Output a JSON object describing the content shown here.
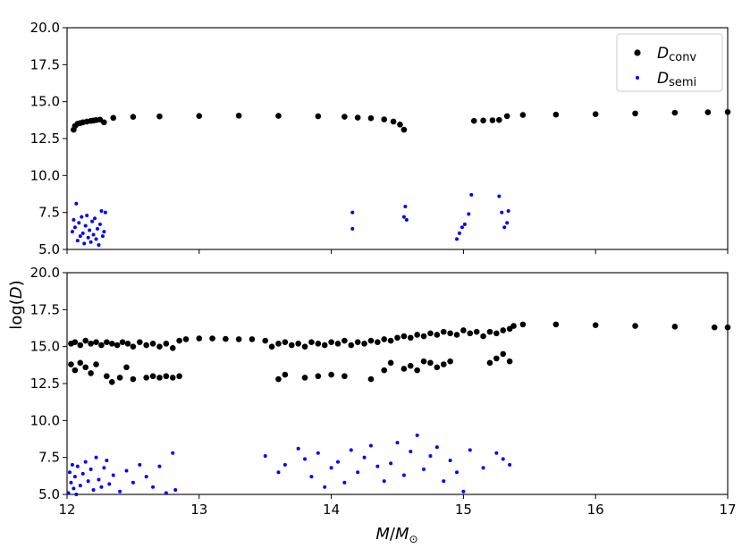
{
  "colors": {
    "conv": "#000000",
    "semi": "#0000ff"
  },
  "figure": {
    "ylabel": "log(",
    "ylabel_var": "D",
    "ylabel_close": ")",
    "xlabel_var": "M",
    "xlabel_sep": "/",
    "xlabel_sub": "⊙"
  },
  "legend": {
    "placement": "top-right",
    "entries": [
      {
        "series": "conv",
        "name": "D",
        "sub": "conv",
        "marker": "large-dot"
      },
      {
        "series": "semi",
        "name": "D",
        "sub": "semi",
        "marker": "small-dot"
      }
    ]
  },
  "chart_data": [
    {
      "type": "scatter",
      "panel": "top",
      "xlim": [
        12,
        17
      ],
      "ylim": [
        5.0,
        20.0
      ],
      "yticks": [
        "5.0",
        "7.5",
        "10.0",
        "12.5",
        "15.0",
        "17.5",
        "20.0"
      ],
      "xticks_labeled": false,
      "grid": false,
      "legend": true,
      "series": [
        {
          "key": "conv",
          "name": "Dconv",
          "points": [
            [
              12.05,
              13.1
            ],
            [
              12.06,
              13.35
            ],
            [
              12.08,
              13.5
            ],
            [
              12.1,
              13.55
            ],
            [
              12.12,
              13.6
            ],
            [
              12.15,
              13.65
            ],
            [
              12.18,
              13.7
            ],
            [
              12.2,
              13.72
            ],
            [
              12.22,
              13.75
            ],
            [
              12.25,
              13.78
            ],
            [
              12.28,
              13.6
            ],
            [
              12.35,
              13.9
            ],
            [
              12.5,
              13.97
            ],
            [
              12.7,
              14.0
            ],
            [
              13.0,
              14.03
            ],
            [
              13.3,
              14.05
            ],
            [
              13.6,
              14.04
            ],
            [
              13.9,
              14.01
            ],
            [
              14.1,
              13.98
            ],
            [
              14.2,
              13.92
            ],
            [
              14.3,
              13.88
            ],
            [
              14.4,
              13.8
            ],
            [
              14.47,
              13.65
            ],
            [
              14.52,
              13.45
            ],
            [
              14.55,
              13.1
            ],
            [
              15.08,
              13.7
            ],
            [
              15.15,
              13.72
            ],
            [
              15.22,
              13.74
            ],
            [
              15.27,
              13.76
            ],
            [
              15.33,
              14.02
            ],
            [
              15.45,
              14.1
            ],
            [
              15.7,
              14.12
            ],
            [
              16.0,
              14.15
            ],
            [
              16.3,
              14.2
            ],
            [
              16.6,
              14.25
            ],
            [
              16.85,
              14.28
            ],
            [
              17.0,
              14.3
            ]
          ]
        },
        {
          "key": "semi",
          "name": "Dsemi",
          "points": [
            [
              12.04,
              6.2
            ],
            [
              12.05,
              7.0
            ],
            [
              12.06,
              6.5
            ],
            [
              12.07,
              8.1
            ],
            [
              12.08,
              5.6
            ],
            [
              12.09,
              6.8
            ],
            [
              12.1,
              5.9
            ],
            [
              12.11,
              7.2
            ],
            [
              12.12,
              6.1
            ],
            [
              12.13,
              5.4
            ],
            [
              12.14,
              6.6
            ],
            [
              12.15,
              7.3
            ],
            [
              12.16,
              5.8
            ],
            [
              12.17,
              6.3
            ],
            [
              12.18,
              5.5
            ],
            [
              12.19,
              6.9
            ],
            [
              12.2,
              6.0
            ],
            [
              12.21,
              7.1
            ],
            [
              12.22,
              5.7
            ],
            [
              12.23,
              6.4
            ],
            [
              12.24,
              5.3
            ],
            [
              12.25,
              6.7
            ],
            [
              12.26,
              7.6
            ],
            [
              12.27,
              5.9
            ],
            [
              12.28,
              6.2
            ],
            [
              12.29,
              7.5
            ],
            [
              14.16,
              6.4
            ],
            [
              14.16,
              7.5
            ],
            [
              14.55,
              7.2
            ],
            [
              14.56,
              7.9
            ],
            [
              14.57,
              7.0
            ],
            [
              14.95,
              5.7
            ],
            [
              14.97,
              6.1
            ],
            [
              14.99,
              6.5
            ],
            [
              15.01,
              6.7
            ],
            [
              15.04,
              7.4
            ],
            [
              15.06,
              8.7
            ],
            [
              15.27,
              8.6
            ],
            [
              15.29,
              7.5
            ],
            [
              15.31,
              6.5
            ],
            [
              15.33,
              6.8
            ],
            [
              15.34,
              7.6
            ]
          ]
        }
      ]
    },
    {
      "type": "scatter",
      "panel": "bottom",
      "xlim": [
        12,
        17
      ],
      "ylim": [
        5.0,
        20.0
      ],
      "xticks": [
        "12",
        "13",
        "14",
        "15",
        "16",
        "17"
      ],
      "yticks": [
        "5.0",
        "7.5",
        "10.0",
        "12.5",
        "15.0",
        "17.5",
        "20.0"
      ],
      "grid": false,
      "legend": false,
      "series": [
        {
          "key": "conv",
          "name": "Dconv",
          "points": [
            [
              12.03,
              15.2
            ],
            [
              12.06,
              15.3
            ],
            [
              12.1,
              15.1
            ],
            [
              12.14,
              15.4
            ],
            [
              12.18,
              15.2
            ],
            [
              12.22,
              15.3
            ],
            [
              12.26,
              15.1
            ],
            [
              12.3,
              15.3
            ],
            [
              12.34,
              15.2
            ],
            [
              12.38,
              15.1
            ],
            [
              12.42,
              15.3
            ],
            [
              12.46,
              15.2
            ],
            [
              12.5,
              15.0
            ],
            [
              12.55,
              15.3
            ],
            [
              12.6,
              15.1
            ],
            [
              12.65,
              15.2
            ],
            [
              12.7,
              15.0
            ],
            [
              12.75,
              15.2
            ],
            [
              12.8,
              14.9
            ],
            [
              12.85,
              15.4
            ],
            [
              12.9,
              15.5
            ],
            [
              13.0,
              15.55
            ],
            [
              13.1,
              15.55
            ],
            [
              13.2,
              15.52
            ],
            [
              13.3,
              15.5
            ],
            [
              13.4,
              15.5
            ],
            [
              13.5,
              15.4
            ],
            [
              13.55,
              15.0
            ],
            [
              13.6,
              15.2
            ],
            [
              13.65,
              15.3
            ],
            [
              13.7,
              15.1
            ],
            [
              13.75,
              15.2
            ],
            [
              13.8,
              15.0
            ],
            [
              13.85,
              15.3
            ],
            [
              13.9,
              15.2
            ],
            [
              13.95,
              15.1
            ],
            [
              14.0,
              15.3
            ],
            [
              14.05,
              15.2
            ],
            [
              14.1,
              15.4
            ],
            [
              14.15,
              15.1
            ],
            [
              14.2,
              15.3
            ],
            [
              14.25,
              15.2
            ],
            [
              14.3,
              15.4
            ],
            [
              14.35,
              15.3
            ],
            [
              14.4,
              15.5
            ],
            [
              14.45,
              15.4
            ],
            [
              14.5,
              15.6
            ],
            [
              14.55,
              15.7
            ],
            [
              14.6,
              15.6
            ],
            [
              14.65,
              15.8
            ],
            [
              14.7,
              15.7
            ],
            [
              14.75,
              15.9
            ],
            [
              14.8,
              15.8
            ],
            [
              14.85,
              16.0
            ],
            [
              14.9,
              15.9
            ],
            [
              14.95,
              15.8
            ],
            [
              15.0,
              16.1
            ],
            [
              15.05,
              15.9
            ],
            [
              15.1,
              16.0
            ],
            [
              15.15,
              15.7
            ],
            [
              15.2,
              16.0
            ],
            [
              15.25,
              15.9
            ],
            [
              15.3,
              16.1
            ],
            [
              15.35,
              16.2
            ],
            [
              15.38,
              16.4
            ],
            [
              15.45,
              16.5
            ],
            [
              15.7,
              16.5
            ],
            [
              16.0,
              16.45
            ],
            [
              16.3,
              16.4
            ],
            [
              16.6,
              16.35
            ],
            [
              16.9,
              16.3
            ],
            [
              17.0,
              16.3
            ],
            [
              12.03,
              13.8
            ],
            [
              12.06,
              13.4
            ],
            [
              12.1,
              13.9
            ],
            [
              12.14,
              13.6
            ],
            [
              12.18,
              13.2
            ],
            [
              12.22,
              13.8
            ],
            [
              12.3,
              13.0
            ],
            [
              12.34,
              12.6
            ],
            [
              12.4,
              12.9
            ],
            [
              12.45,
              13.6
            ],
            [
              12.5,
              12.8
            ],
            [
              12.6,
              12.9
            ],
            [
              12.65,
              13.0
            ],
            [
              12.7,
              12.9
            ],
            [
              12.75,
              13.0
            ],
            [
              12.8,
              12.9
            ],
            [
              12.85,
              13.0
            ],
            [
              13.6,
              12.8
            ],
            [
              13.65,
              13.1
            ],
            [
              13.8,
              12.9
            ],
            [
              13.9,
              13.0
            ],
            [
              14.0,
              13.1
            ],
            [
              14.1,
              13.0
            ],
            [
              14.3,
              12.8
            ],
            [
              14.4,
              13.4
            ],
            [
              14.45,
              13.9
            ],
            [
              14.55,
              13.5
            ],
            [
              14.6,
              13.7
            ],
            [
              14.65,
              13.4
            ],
            [
              14.7,
              14.0
            ],
            [
              14.75,
              13.9
            ],
            [
              14.8,
              13.6
            ],
            [
              14.85,
              13.8
            ],
            [
              14.9,
              14.0
            ],
            [
              15.2,
              13.9
            ],
            [
              15.25,
              14.2
            ],
            [
              15.3,
              14.5
            ],
            [
              15.35,
              14.0
            ]
          ]
        },
        {
          "key": "semi",
          "name": "Dsemi",
          "points": [
            [
              12.01,
              5.1
            ],
            [
              12.02,
              6.5
            ],
            [
              12.03,
              5.8
            ],
            [
              12.04,
              7.0
            ],
            [
              12.05,
              5.4
            ],
            [
              12.06,
              6.2
            ],
            [
              12.07,
              5.0
            ],
            [
              12.08,
              6.9
            ],
            [
              12.1,
              5.6
            ],
            [
              12.12,
              6.4
            ],
            [
              12.14,
              7.2
            ],
            [
              12.16,
              5.9
            ],
            [
              12.18,
              6.7
            ],
            [
              12.2,
              5.3
            ],
            [
              12.22,
              7.5
            ],
            [
              12.24,
              6.0
            ],
            [
              12.26,
              5.5
            ],
            [
              12.28,
              6.8
            ],
            [
              12.3,
              7.3
            ],
            [
              12.32,
              5.7
            ],
            [
              12.35,
              6.3
            ],
            [
              12.4,
              5.2
            ],
            [
              12.45,
              6.6
            ],
            [
              12.5,
              5.8
            ],
            [
              12.55,
              7.0
            ],
            [
              12.6,
              6.2
            ],
            [
              12.65,
              5.5
            ],
            [
              12.7,
              6.9
            ],
            [
              12.75,
              5.1
            ],
            [
              12.8,
              7.8
            ],
            [
              12.82,
              5.3
            ],
            [
              13.5,
              7.6
            ],
            [
              13.6,
              6.5
            ],
            [
              13.65,
              7.0
            ],
            [
              13.75,
              8.1
            ],
            [
              13.8,
              7.4
            ],
            [
              13.85,
              6.2
            ],
            [
              13.9,
              7.8
            ],
            [
              13.95,
              5.5
            ],
            [
              14.0,
              6.8
            ],
            [
              14.05,
              7.2
            ],
            [
              14.1,
              5.8
            ],
            [
              14.15,
              8.0
            ],
            [
              14.2,
              6.5
            ],
            [
              14.25,
              7.5
            ],
            [
              14.3,
              8.3
            ],
            [
              14.35,
              6.9
            ],
            [
              14.4,
              5.9
            ],
            [
              14.45,
              7.1
            ],
            [
              14.5,
              8.5
            ],
            [
              14.55,
              6.3
            ],
            [
              14.6,
              7.9
            ],
            [
              14.65,
              9.0
            ],
            [
              14.7,
              6.7
            ],
            [
              14.75,
              7.6
            ],
            [
              14.8,
              8.2
            ],
            [
              14.85,
              5.9
            ],
            [
              14.9,
              7.3
            ],
            [
              14.95,
              6.5
            ],
            [
              15.0,
              5.2
            ],
            [
              15.05,
              8.0
            ],
            [
              15.15,
              6.8
            ],
            [
              15.25,
              7.8
            ],
            [
              15.3,
              7.4
            ],
            [
              15.35,
              7.0
            ]
          ]
        }
      ]
    }
  ]
}
